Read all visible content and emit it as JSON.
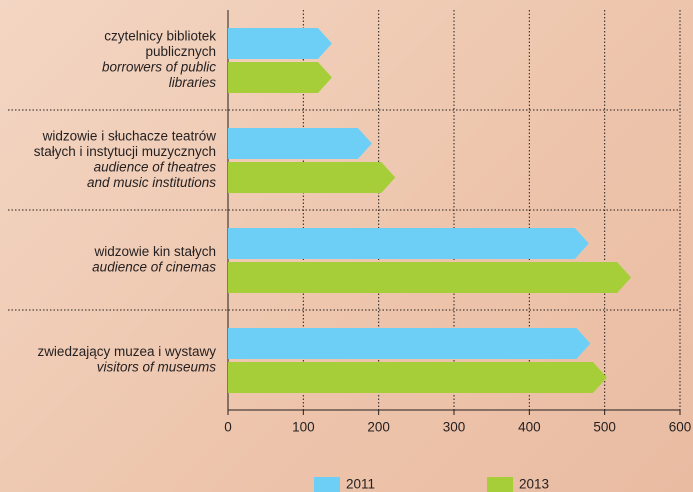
{
  "chart_data": {
    "type": "bar",
    "orientation": "horizontal",
    "bar_shape": "arrow",
    "categories": [
      {
        "lines": [
          "czytelnicy bibliotek",
          "publicznych"
        ],
        "italic_lines": [
          "borrowers of public",
          "libraries"
        ]
      },
      {
        "lines": [
          "widzowie i słuchacze teatrów",
          "stałych i instytucji muzycznych"
        ],
        "italic_lines": [
          "audience of theatres",
          "and music institutions"
        ]
      },
      {
        "lines": [
          "widzowie kin stałych"
        ],
        "italic_lines": [
          "audience of cinemas"
        ]
      },
      {
        "lines": [
          "zwiedzający muzea i wystawy"
        ],
        "italic_lines": [
          "visitors of museums"
        ]
      }
    ],
    "series": [
      {
        "name": "2011",
        "color": "#6dcff6",
        "values": [
          138,
          191,
          479,
          481
        ]
      },
      {
        "name": "2013",
        "color": "#a6ce39",
        "values": [
          138,
          222,
          535,
          503
        ]
      }
    ],
    "xlim": [
      0,
      600
    ],
    "xticks": [
      0,
      100,
      200,
      300,
      400,
      500,
      600
    ],
    "grid": true,
    "legend": "bottom"
  }
}
